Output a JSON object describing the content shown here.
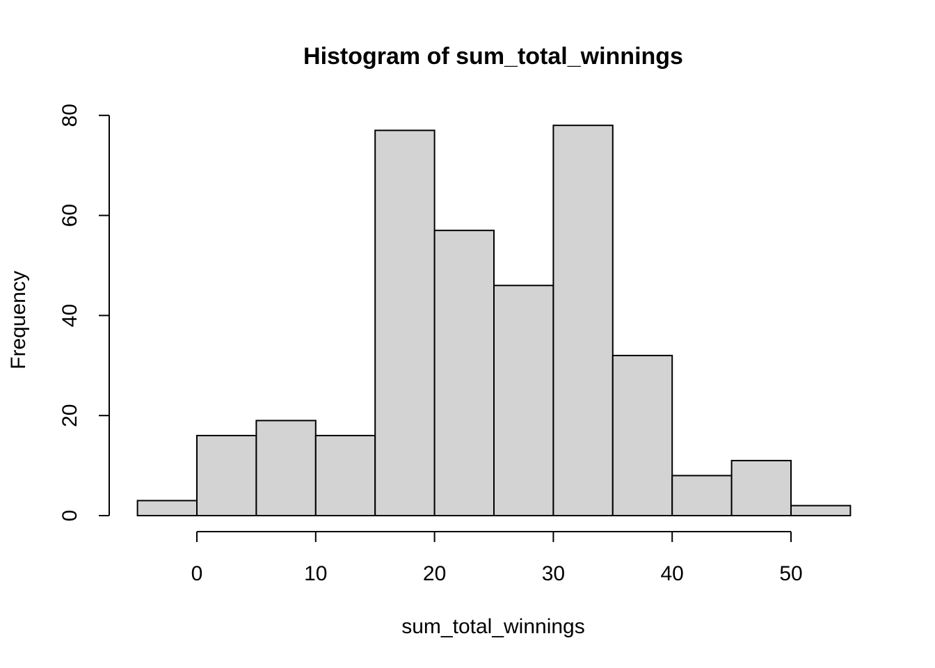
{
  "chart_data": {
    "type": "bar",
    "title": "Histogram of sum_total_winnings",
    "xlabel": "sum_total_winnings",
    "ylabel": "Frequency",
    "bins": [
      {
        "start": -5,
        "end": 0,
        "count": 3
      },
      {
        "start": 0,
        "end": 5,
        "count": 16
      },
      {
        "start": 5,
        "end": 10,
        "count": 19
      },
      {
        "start": 10,
        "end": 15,
        "count": 16
      },
      {
        "start": 15,
        "end": 20,
        "count": 77
      },
      {
        "start": 20,
        "end": 25,
        "count": 57
      },
      {
        "start": 25,
        "end": 30,
        "count": 46
      },
      {
        "start": 30,
        "end": 35,
        "count": 78
      },
      {
        "start": 35,
        "end": 40,
        "count": 32
      },
      {
        "start": 40,
        "end": 45,
        "count": 8
      },
      {
        "start": 45,
        "end": 50,
        "count": 11
      },
      {
        "start": 50,
        "end": 55,
        "count": 2
      }
    ],
    "xticks": [
      0,
      10,
      20,
      30,
      40,
      50
    ],
    "yticks": [
      0,
      20,
      40,
      60,
      80
    ],
    "xlim": [
      -5,
      55
    ],
    "ylim": [
      0,
      80
    ],
    "grid": false,
    "bar_fill": "#d3d3d3",
    "bar_stroke": "#000000"
  }
}
